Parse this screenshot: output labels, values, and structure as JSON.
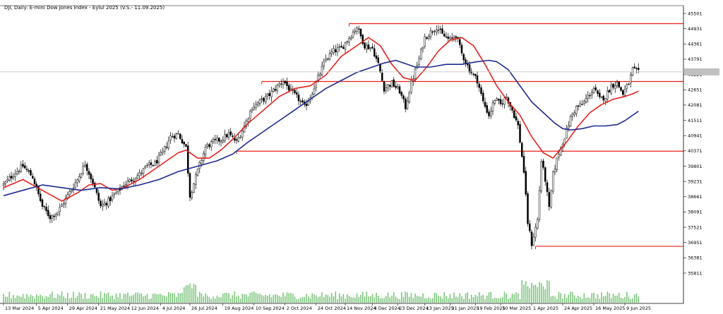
{
  "chart_data": {
    "type": "candlestick",
    "title": "DJI, Daily:  E-mini Dow Jones Index  - Eylul 2025 (V.S.- 11.09.2025)",
    "ylim": [
      35311,
      45501
    ],
    "y_ticks": [
      "45501",
      "44931",
      "44361",
      "43791",
      "43221",
      "42651",
      "42081",
      "41511",
      "40941",
      "40371",
      "39801",
      "39231",
      "38661",
      "38091",
      "37521",
      "36951",
      "36381",
      "35811"
    ],
    "x_ticks": [
      {
        "label": "13 Mar 2024",
        "t": 0
      },
      {
        "label": "5 Apr 2024",
        "t": 17
      },
      {
        "label": "29 Apr 2024",
        "t": 33
      },
      {
        "label": "21 May 2024",
        "t": 49
      },
      {
        "label": "12 Jun 2024",
        "t": 65
      },
      {
        "label": "4 Jul 2024",
        "t": 81
      },
      {
        "label": "26 Jul 2024",
        "t": 96
      },
      {
        "label": "19 Aug 2024",
        "t": 113
      },
      {
        "label": "10 Sep 2024",
        "t": 129
      },
      {
        "label": "2 Oct 2024",
        "t": 145
      },
      {
        "label": "24 Oct 2024",
        "t": 161
      },
      {
        "label": "14 Nov 2024",
        "t": 176
      },
      {
        "label": "4 Dec 2024",
        "t": 190
      },
      {
        "label": "23 Dec 2024",
        "t": 203
      },
      {
        "label": "13 Jan 2025",
        "t": 217
      },
      {
        "label": "31 Jan 2025",
        "t": 230
      },
      {
        "label": "19 Feb 2025",
        "t": 243
      },
      {
        "label": "10 Mar 2025",
        "t": 256
      },
      {
        "label": "1 Apr 2025",
        "t": 272
      },
      {
        "label": "24 Apr 2025",
        "t": 288
      },
      {
        "label": "16 May 2025",
        "t": 304
      },
      {
        "label": "9 Jun 2025",
        "t": 320
      }
    ],
    "current_price": 43320,
    "current_price_label": "",
    "horizontal_levels": [
      {
        "price": 45120,
        "from_t": 178,
        "to_t": 370
      },
      {
        "price": 42960,
        "from_t": 133,
        "to_t": 370
      },
      {
        "price": 40360,
        "from_t": 120,
        "to_t": 370
      },
      {
        "price": 36810,
        "from_t": 274,
        "to_t": 370
      }
    ],
    "closes_anchor": [
      [
        0,
        39100
      ],
      [
        5,
        39500
      ],
      [
        10,
        39800
      ],
      [
        15,
        39400
      ],
      [
        20,
        38300
      ],
      [
        24,
        37900
      ],
      [
        28,
        38100
      ],
      [
        33,
        38700
      ],
      [
        38,
        39300
      ],
      [
        42,
        39900
      ],
      [
        46,
        39200
      ],
      [
        50,
        38300
      ],
      [
        54,
        38500
      ],
      [
        58,
        38800
      ],
      [
        62,
        39100
      ],
      [
        66,
        39300
      ],
      [
        70,
        39500
      ],
      [
        74,
        39800
      ],
      [
        78,
        39900
      ],
      [
        82,
        40300
      ],
      [
        86,
        40900
      ],
      [
        90,
        41000
      ],
      [
        94,
        40500
      ],
      [
        96,
        38700
      ],
      [
        99,
        39400
      ],
      [
        104,
        40500
      ],
      [
        108,
        40700
      ],
      [
        112,
        40800
      ],
      [
        116,
        41000
      ],
      [
        120,
        40700
      ],
      [
        124,
        41300
      ],
      [
        128,
        42000
      ],
      [
        132,
        42200
      ],
      [
        136,
        42400
      ],
      [
        140,
        42700
      ],
      [
        144,
        43000
      ],
      [
        148,
        42600
      ],
      [
        152,
        42300
      ],
      [
        155,
        42000
      ],
      [
        158,
        42400
      ],
      [
        162,
        43100
      ],
      [
        166,
        43800
      ],
      [
        170,
        44100
      ],
      [
        174,
        44200
      ],
      [
        178,
        44600
      ],
      [
        182,
        45000
      ],
      [
        186,
        44300
      ],
      [
        190,
        44200
      ],
      [
        193,
        43600
      ],
      [
        196,
        42700
      ],
      [
        200,
        42900
      ],
      [
        204,
        42600
      ],
      [
        207,
        42000
      ],
      [
        210,
        42900
      ],
      [
        214,
        43800
      ],
      [
        217,
        44600
      ],
      [
        220,
        44800
      ],
      [
        223,
        45000
      ],
      [
        226,
        44700
      ],
      [
        230,
        44500
      ],
      [
        233,
        44700
      ],
      [
        236,
        44000
      ],
      [
        240,
        43400
      ],
      [
        244,
        43000
      ],
      [
        247,
        42200
      ],
      [
        250,
        41700
      ],
      [
        253,
        42300
      ],
      [
        256,
        42100
      ],
      [
        259,
        42400
      ],
      [
        262,
        41900
      ],
      [
        265,
        41300
      ],
      [
        268,
        39600
      ],
      [
        270,
        37700
      ],
      [
        272,
        36900
      ],
      [
        275,
        37800
      ],
      [
        277,
        40000
      ],
      [
        279,
        39300
      ],
      [
        281,
        38200
      ],
      [
        283,
        39500
      ],
      [
        286,
        40300
      ],
      [
        289,
        40900
      ],
      [
        292,
        41600
      ],
      [
        295,
        42000
      ],
      [
        298,
        42100
      ],
      [
        301,
        42400
      ],
      [
        304,
        42700
      ],
      [
        307,
        42300
      ],
      [
        310,
        42400
      ],
      [
        313,
        42800
      ],
      [
        316,
        42900
      ],
      [
        319,
        42500
      ],
      [
        322,
        42900
      ],
      [
        324,
        43400
      ],
      [
        327,
        43300
      ]
    ],
    "series": [
      {
        "name": "",
        "type": "ma",
        "color": "#e8201a",
        "points": [
          [
            0,
            39000
          ],
          [
            10,
            39300
          ],
          [
            20,
            38900
          ],
          [
            30,
            38500
          ],
          [
            38,
            38800
          ],
          [
            44,
            39100
          ],
          [
            50,
            39150
          ],
          [
            56,
            38900
          ],
          [
            62,
            39000
          ],
          [
            70,
            39300
          ],
          [
            80,
            39800
          ],
          [
            90,
            40300
          ],
          [
            94,
            40400
          ],
          [
            100,
            40100
          ],
          [
            106,
            40100
          ],
          [
            112,
            40400
          ],
          [
            118,
            40800
          ],
          [
            126,
            41400
          ],
          [
            134,
            41900
          ],
          [
            142,
            42400
          ],
          [
            150,
            42700
          ],
          [
            158,
            42800
          ],
          [
            166,
            43200
          ],
          [
            174,
            43900
          ],
          [
            182,
            44300
          ],
          [
            188,
            44600
          ],
          [
            194,
            44300
          ],
          [
            200,
            43600
          ],
          [
            206,
            43100
          ],
          [
            212,
            43000
          ],
          [
            218,
            43500
          ],
          [
            224,
            44100
          ],
          [
            230,
            44500
          ],
          [
            236,
            44600
          ],
          [
            242,
            44300
          ],
          [
            248,
            43600
          ],
          [
            254,
            42800
          ],
          [
            260,
            42200
          ],
          [
            266,
            41700
          ],
          [
            272,
            40900
          ],
          [
            278,
            40300
          ],
          [
            283,
            40100
          ],
          [
            290,
            40700
          ],
          [
            296,
            41300
          ],
          [
            302,
            41800
          ],
          [
            308,
            42100
          ],
          [
            314,
            42300
          ],
          [
            320,
            42400
          ],
          [
            324,
            42500
          ],
          [
            327,
            42600
          ]
        ]
      },
      {
        "name": "",
        "type": "ma",
        "color": "#1e2a8f",
        "points": [
          [
            0,
            38700
          ],
          [
            10,
            38900
          ],
          [
            20,
            39100
          ],
          [
            30,
            39000
          ],
          [
            40,
            38900
          ],
          [
            50,
            39000
          ],
          [
            60,
            38950
          ],
          [
            70,
            39100
          ],
          [
            80,
            39300
          ],
          [
            90,
            39600
          ],
          [
            100,
            39800
          ],
          [
            110,
            40000
          ],
          [
            118,
            40250
          ],
          [
            126,
            40700
          ],
          [
            134,
            41100
          ],
          [
            142,
            41500
          ],
          [
            150,
            41900
          ],
          [
            158,
            42300
          ],
          [
            166,
            42700
          ],
          [
            174,
            43000
          ],
          [
            182,
            43300
          ],
          [
            190,
            43500
          ],
          [
            196,
            43650
          ],
          [
            202,
            43750
          ],
          [
            206,
            43650
          ],
          [
            212,
            43500
          ],
          [
            220,
            43500
          ],
          [
            228,
            43600
          ],
          [
            236,
            43600
          ],
          [
            244,
            43700
          ],
          [
            250,
            43750
          ],
          [
            254,
            43700
          ],
          [
            260,
            43400
          ],
          [
            266,
            42800
          ],
          [
            272,
            42200
          ],
          [
            278,
            41800
          ],
          [
            284,
            41400
          ],
          [
            288,
            41200
          ],
          [
            292,
            41150
          ],
          [
            298,
            41200
          ],
          [
            304,
            41300
          ],
          [
            310,
            41300
          ],
          [
            316,
            41350
          ],
          [
            320,
            41500
          ],
          [
            324,
            41700
          ],
          [
            327,
            41850
          ]
        ]
      }
    ],
    "grid": false,
    "legend": "none"
  }
}
